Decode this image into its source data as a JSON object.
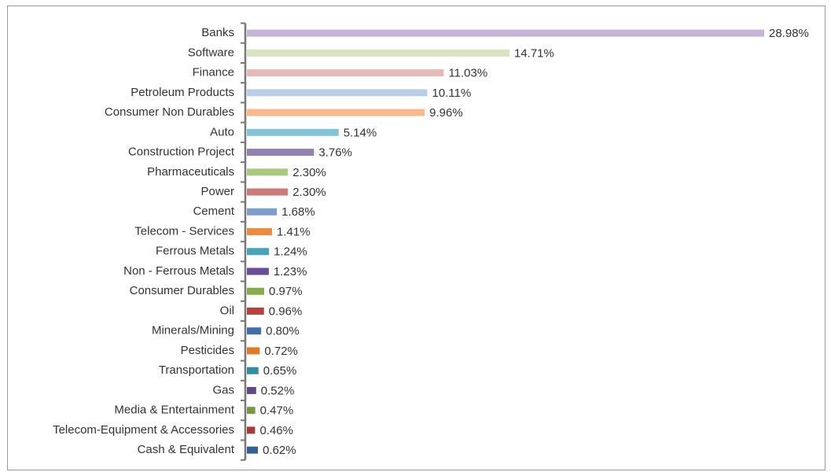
{
  "chart_data": {
    "type": "bar",
    "orientation": "horizontal",
    "categories": [
      "Banks",
      "Software",
      "Finance",
      "Petroleum Products",
      "Consumer Non Durables",
      "Auto",
      "Construction Project",
      "Pharmaceuticals",
      "Power",
      "Cement",
      "Telecom - Services",
      "Ferrous Metals",
      "Non - Ferrous Metals",
      "Consumer Durables",
      "Oil",
      "Minerals/Mining",
      "Pesticides",
      "Transportation",
      "Gas",
      "Media & Entertainment",
      "Telecom-Equipment & Accessories",
      "Cash & Equivalent"
    ],
    "values": [
      28.98,
      14.71,
      11.03,
      10.11,
      9.96,
      5.14,
      3.76,
      2.3,
      2.3,
      1.68,
      1.41,
      1.24,
      1.23,
      0.97,
      0.96,
      0.8,
      0.72,
      0.65,
      0.52,
      0.47,
      0.46,
      0.62
    ],
    "value_labels": [
      "28.98%",
      "14.71%",
      "11.03%",
      "10.11%",
      "9.96%",
      "5.14%",
      "3.76%",
      "2.30%",
      "2.30%",
      "1.68%",
      "1.41%",
      "1.24%",
      "1.23%",
      "0.97%",
      "0.96%",
      "0.80%",
      "0.72%",
      "0.65%",
      "0.52%",
      "0.47%",
      "0.46%",
      "0.62%"
    ],
    "colors": [
      "#c4b5d6",
      "#d7e4bd",
      "#e6b9b8",
      "#b9cde5",
      "#fab98a",
      "#82c4d6",
      "#9282b2",
      "#a9c97c",
      "#cd7b79",
      "#7f9dcb",
      "#ec8a3e",
      "#47a3ba",
      "#6b4e98",
      "#87ad4b",
      "#b9403e",
      "#3f70ab",
      "#df7a27",
      "#2f8ea3",
      "#5d4a85",
      "#799a43",
      "#a83a38",
      "#365f95"
    ]
  }
}
